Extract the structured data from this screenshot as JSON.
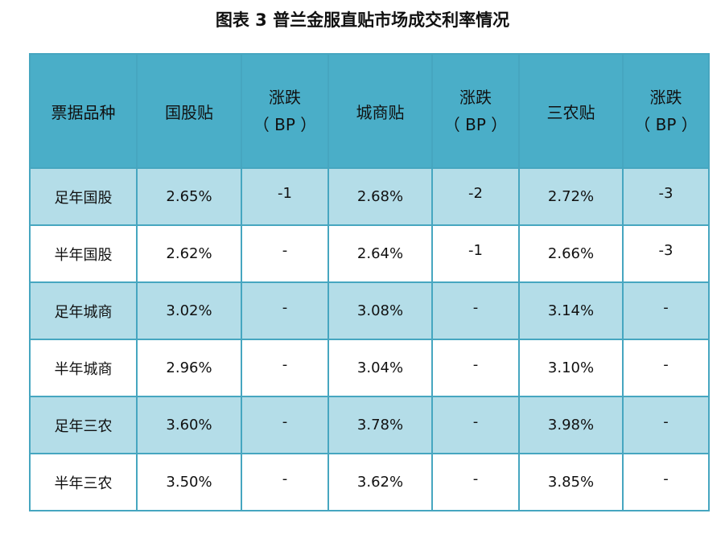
{
  "title": "图表 3  普兰金服直贴市场成交利率情况",
  "headers": {
    "type": "票据品种",
    "guogu": "国股贴",
    "guogu_chg": [
      "涨跌",
      "（ BP ）"
    ],
    "chengshang": "城商贴",
    "chengshang_chg": [
      "涨跌",
      "（ BP ）"
    ],
    "sannong": "三农贴",
    "sannong_chg": [
      "涨跌",
      "（ BP ）"
    ]
  },
  "rows": [
    {
      "name": "足年国股",
      "guogu": "2.65%",
      "guogu_chg": "-1",
      "chengshang": "2.68%",
      "chengshang_chg": "-2",
      "sannong": "2.72%",
      "sannong_chg": "-3"
    },
    {
      "name": "半年国股",
      "guogu": "2.62%",
      "guogu_chg": "-",
      "chengshang": "2.64%",
      "chengshang_chg": "-1",
      "sannong": "2.66%",
      "sannong_chg": "-3"
    },
    {
      "name": "足年城商",
      "guogu": "3.02%",
      "guogu_chg": "-",
      "chengshang": "3.08%",
      "chengshang_chg": "-",
      "sannong": "3.14%",
      "sannong_chg": "-"
    },
    {
      "name": "半年城商",
      "guogu": "2.96%",
      "guogu_chg": "-",
      "chengshang": "3.04%",
      "chengshang_chg": "-",
      "sannong": "3.10%",
      "sannong_chg": "-"
    },
    {
      "name": "足年三农",
      "guogu": "3.60%",
      "guogu_chg": "-",
      "chengshang": "3.78%",
      "chengshang_chg": "-",
      "sannong": "3.98%",
      "sannong_chg": "-"
    },
    {
      "name": "半年三农",
      "guogu": "3.50%",
      "guogu_chg": "-",
      "chengshang": "3.62%",
      "chengshang_chg": "-",
      "sannong": "3.85%",
      "sannong_chg": "-"
    }
  ],
  "colors": {
    "header_bg": "#4aaec8",
    "shaded_row": "#b4dde8",
    "border": "#46a6c0"
  }
}
